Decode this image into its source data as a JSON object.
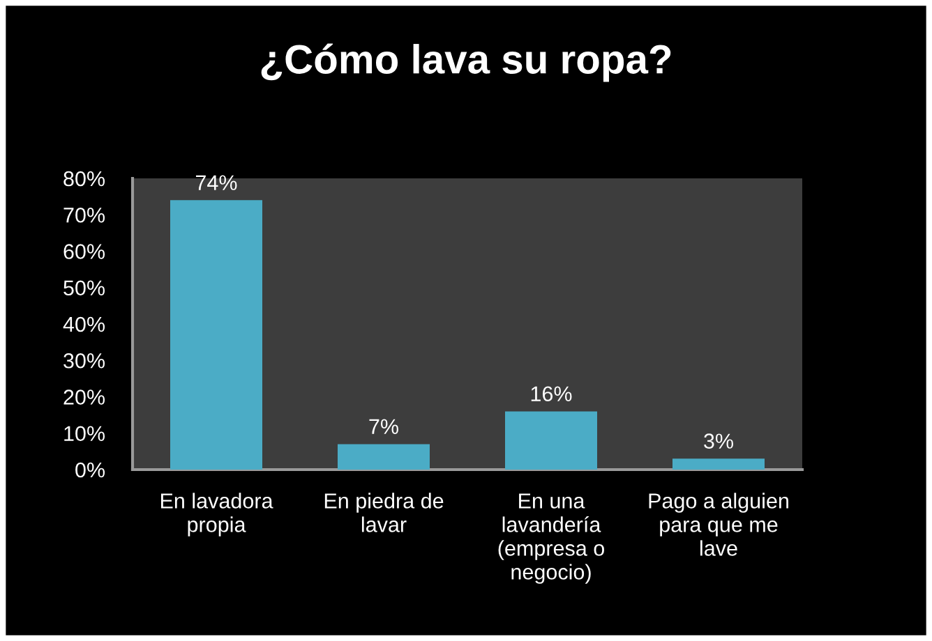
{
  "chart_data": {
    "type": "bar",
    "title": "¿Cómo lava su ropa?",
    "categories": [
      "En lavadora\npropia",
      "En piedra de\nlavar",
      "En una\nlavandería\n(empresa o\nnegocio)",
      "Pago a alguien\npara que me\nlave"
    ],
    "values": [
      74,
      7,
      16,
      3
    ],
    "value_labels": [
      "74%",
      "7%",
      "16%",
      "3%"
    ],
    "color": "#4bacc6",
    "ylim": [
      0,
      80
    ],
    "yticks": [
      {
        "value": 0,
        "label": "0%"
      },
      {
        "value": 10,
        "label": "10%"
      },
      {
        "value": 20,
        "label": "20%"
      },
      {
        "value": 30,
        "label": "30%"
      },
      {
        "value": 40,
        "label": "40%"
      },
      {
        "value": 50,
        "label": "50%"
      },
      {
        "value": 60,
        "label": "60%"
      },
      {
        "value": 70,
        "label": "70%"
      },
      {
        "value": 80,
        "label": "80%"
      }
    ],
    "grid": false
  }
}
